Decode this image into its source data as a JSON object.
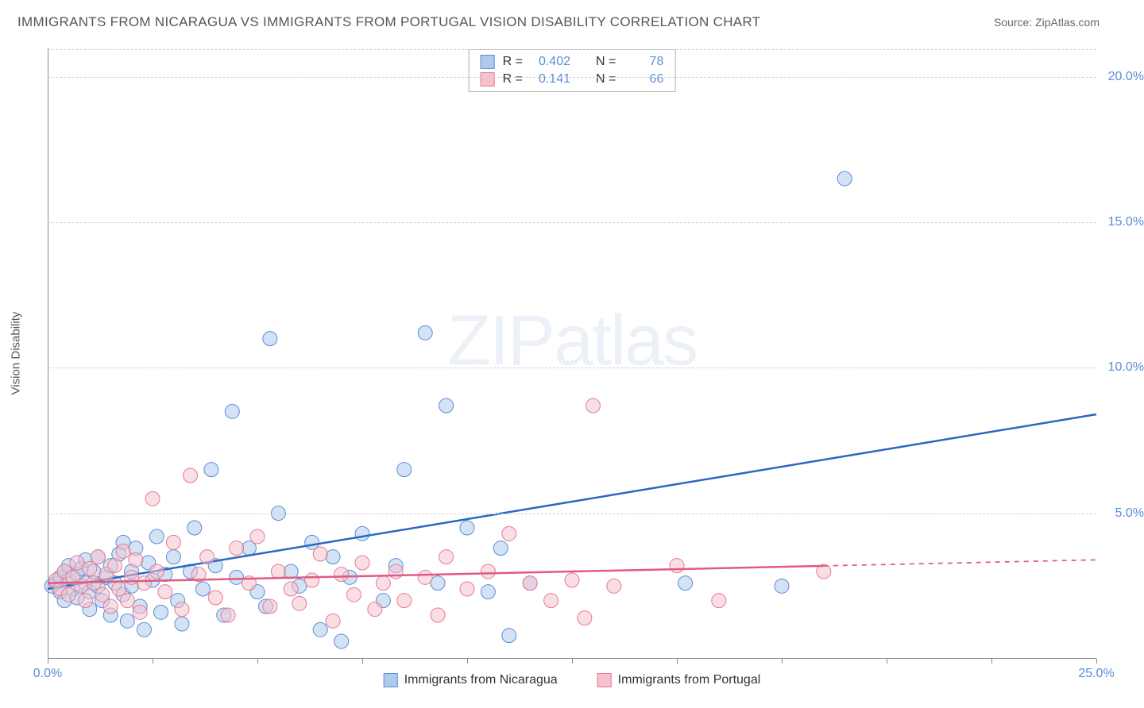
{
  "title": "IMMIGRANTS FROM NICARAGUA VS IMMIGRANTS FROM PORTUGAL VISION DISABILITY CORRELATION CHART",
  "source": "Source: ZipAtlas.com",
  "y_axis_label": "Vision Disability",
  "watermark": "ZIPatlas",
  "chart": {
    "type": "scatter",
    "background_color": "#ffffff",
    "grid_color": "#d0d0d0",
    "axis_color": "#888888",
    "tick_label_color": "#5b8dd6",
    "xlim": [
      0,
      25
    ],
    "ylim": [
      0,
      21
    ],
    "x_ticks": [
      0,
      2.5,
      5,
      7.5,
      10,
      12.5,
      15,
      17.5,
      20,
      22.5,
      25
    ],
    "x_tick_labels": {
      "0": "0.0%",
      "25": "25.0%"
    },
    "y_grid": [
      5,
      10,
      15,
      20
    ],
    "y_tick_labels": {
      "5": "5.0%",
      "10": "10.0%",
      "15": "15.0%",
      "20": "20.0%"
    },
    "point_radius": 9,
    "point_opacity": 0.55,
    "line_width": 2.5,
    "series": [
      {
        "name": "Immigrants from Nicaragua",
        "color_fill": "#aecbeb",
        "color_stroke": "#5b8dd6",
        "line_color": "#2968c0",
        "r_value": "0.402",
        "n_value": "78",
        "trend": {
          "x1": 0,
          "y1": 2.4,
          "x2": 25,
          "y2": 8.4,
          "solid_until": 25
        },
        "points": [
          [
            0.1,
            2.5
          ],
          [
            0.2,
            2.6
          ],
          [
            0.3,
            2.3
          ],
          [
            0.3,
            2.8
          ],
          [
            0.4,
            2.0
          ],
          [
            0.4,
            3.0
          ],
          [
            0.5,
            2.7
          ],
          [
            0.5,
            3.2
          ],
          [
            0.6,
            2.4
          ],
          [
            0.7,
            2.9
          ],
          [
            0.7,
            2.1
          ],
          [
            0.8,
            3.1
          ],
          [
            0.9,
            2.6
          ],
          [
            0.9,
            3.4
          ],
          [
            1.0,
            2.3
          ],
          [
            1.0,
            1.7
          ],
          [
            1.1,
            3.0
          ],
          [
            1.2,
            2.5
          ],
          [
            1.2,
            3.5
          ],
          [
            1.3,
            2.0
          ],
          [
            1.4,
            2.8
          ],
          [
            1.5,
            3.2
          ],
          [
            1.5,
            1.5
          ],
          [
            1.6,
            2.6
          ],
          [
            1.7,
            3.6
          ],
          [
            1.8,
            2.2
          ],
          [
            1.8,
            4.0
          ],
          [
            1.9,
            1.3
          ],
          [
            2.0,
            3.0
          ],
          [
            2.0,
            2.5
          ],
          [
            2.1,
            3.8
          ],
          [
            2.2,
            1.8
          ],
          [
            2.3,
            1.0
          ],
          [
            2.4,
            3.3
          ],
          [
            2.5,
            2.7
          ],
          [
            2.6,
            4.2
          ],
          [
            2.7,
            1.6
          ],
          [
            2.8,
            2.9
          ],
          [
            3.0,
            3.5
          ],
          [
            3.1,
            2.0
          ],
          [
            3.2,
            1.2
          ],
          [
            3.4,
            3.0
          ],
          [
            3.5,
            4.5
          ],
          [
            3.7,
            2.4
          ],
          [
            3.9,
            6.5
          ],
          [
            4.0,
            3.2
          ],
          [
            4.2,
            1.5
          ],
          [
            4.4,
            8.5
          ],
          [
            4.5,
            2.8
          ],
          [
            4.8,
            3.8
          ],
          [
            5.0,
            2.3
          ],
          [
            5.2,
            1.8
          ],
          [
            5.3,
            11.0
          ],
          [
            5.5,
            5.0
          ],
          [
            5.8,
            3.0
          ],
          [
            6.0,
            2.5
          ],
          [
            6.3,
            4.0
          ],
          [
            6.5,
            1.0
          ],
          [
            6.8,
            3.5
          ],
          [
            7.0,
            0.6
          ],
          [
            7.2,
            2.8
          ],
          [
            7.5,
            4.3
          ],
          [
            8.0,
            2.0
          ],
          [
            8.3,
            3.2
          ],
          [
            8.5,
            6.5
          ],
          [
            9.0,
            11.2
          ],
          [
            9.3,
            2.6
          ],
          [
            9.5,
            8.7
          ],
          [
            10.0,
            4.5
          ],
          [
            10.5,
            2.3
          ],
          [
            10.8,
            3.8
          ],
          [
            11.0,
            0.8
          ],
          [
            11.5,
            2.6
          ],
          [
            15.2,
            2.6
          ],
          [
            17.5,
            2.5
          ],
          [
            19.0,
            16.5
          ]
        ]
      },
      {
        "name": "Immigrants from Portugal",
        "color_fill": "#f4c2cd",
        "color_stroke": "#e77a95",
        "line_color": "#e15a80",
        "r_value": "0.141",
        "n_value": "66",
        "trend": {
          "x1": 0,
          "y1": 2.6,
          "x2": 25,
          "y2": 3.4,
          "solid_until": 18.5
        },
        "points": [
          [
            0.2,
            2.7
          ],
          [
            0.3,
            2.4
          ],
          [
            0.4,
            3.0
          ],
          [
            0.5,
            2.2
          ],
          [
            0.6,
            2.8
          ],
          [
            0.7,
            3.3
          ],
          [
            0.8,
            2.5
          ],
          [
            0.9,
            2.0
          ],
          [
            1.0,
            3.1
          ],
          [
            1.1,
            2.6
          ],
          [
            1.2,
            3.5
          ],
          [
            1.3,
            2.2
          ],
          [
            1.4,
            2.9
          ],
          [
            1.5,
            1.8
          ],
          [
            1.6,
            3.2
          ],
          [
            1.7,
            2.4
          ],
          [
            1.8,
            3.7
          ],
          [
            1.9,
            2.0
          ],
          [
            2.0,
            2.8
          ],
          [
            2.1,
            3.4
          ],
          [
            2.2,
            1.6
          ],
          [
            2.3,
            2.6
          ],
          [
            2.5,
            5.5
          ],
          [
            2.6,
            3.0
          ],
          [
            2.8,
            2.3
          ],
          [
            3.0,
            4.0
          ],
          [
            3.2,
            1.7
          ],
          [
            3.4,
            6.3
          ],
          [
            3.6,
            2.9
          ],
          [
            3.8,
            3.5
          ],
          [
            4.0,
            2.1
          ],
          [
            4.3,
            1.5
          ],
          [
            4.5,
            3.8
          ],
          [
            4.8,
            2.6
          ],
          [
            5.0,
            4.2
          ],
          [
            5.3,
            1.8
          ],
          [
            5.5,
            3.0
          ],
          [
            5.8,
            2.4
          ],
          [
            6.0,
            1.9
          ],
          [
            6.3,
            2.7
          ],
          [
            6.5,
            3.6
          ],
          [
            6.8,
            1.3
          ],
          [
            7.0,
            2.9
          ],
          [
            7.3,
            2.2
          ],
          [
            7.5,
            3.3
          ],
          [
            7.8,
            1.7
          ],
          [
            8.0,
            2.6
          ],
          [
            8.3,
            3.0
          ],
          [
            8.5,
            2.0
          ],
          [
            9.0,
            2.8
          ],
          [
            9.3,
            1.5
          ],
          [
            9.5,
            3.5
          ],
          [
            10.0,
            2.4
          ],
          [
            10.5,
            3.0
          ],
          [
            11.0,
            4.3
          ],
          [
            11.5,
            2.6
          ],
          [
            12.0,
            2.0
          ],
          [
            12.5,
            2.7
          ],
          [
            12.8,
            1.4
          ],
          [
            13.0,
            8.7
          ],
          [
            13.5,
            2.5
          ],
          [
            15.0,
            3.2
          ],
          [
            16.0,
            2.0
          ],
          [
            18.5,
            3.0
          ]
        ]
      }
    ]
  },
  "legend_labels": {
    "r_prefix": "R =",
    "n_prefix": "N ="
  }
}
